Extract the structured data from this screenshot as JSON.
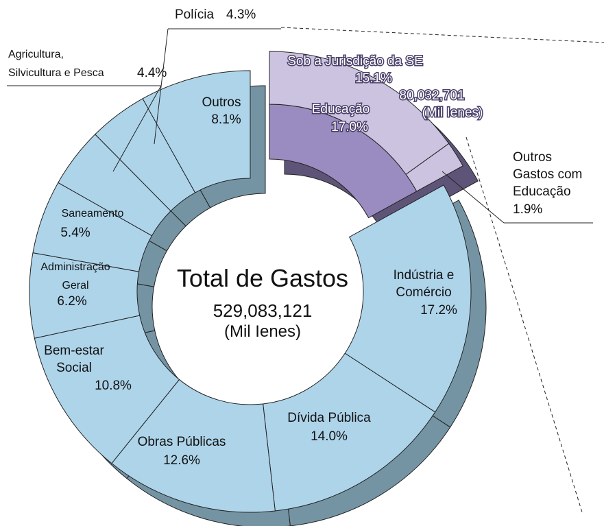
{
  "chart_data": {
    "type": "donut",
    "center_title": "Total de Gastos",
    "total": 529083121,
    "total_label": "529,083,121",
    "unit": "(Mil Ienes)",
    "categories": [
      "Educação",
      "Indústria e\nComércio",
      "Dívida Pública",
      "Obras Públicas",
      "Bem-estar\nSocial",
      "Administração\nGeral",
      "Saneamento",
      "Agricultura,\nSilvicultura e Pesca",
      "Polícia",
      "Outros"
    ],
    "values": [
      17.0,
      17.2,
      14.0,
      12.6,
      10.8,
      6.2,
      5.4,
      4.4,
      4.3,
      8.1
    ],
    "value_labels": [
      "17.0%",
      "17.2%",
      "14.0%",
      "12.6%",
      "10.8%",
      "6.2%",
      "5.4%",
      "4.4%",
      "4.3%",
      "8.1%"
    ],
    "color": "#aed4ea",
    "highlight_color": "#9a8cc0",
    "education_breakdown": [
      {
        "name": "Sob a Jurisdição da SE",
        "value": 15.1,
        "value_label": "15.1%",
        "amount": 80032701,
        "amount_label": "80,032,701",
        "color": "#cbc3e0"
      },
      {
        "name": "Outros\nGastos com\nEducação",
        "value": 1.9,
        "value_label": "1.9%",
        "color": "#cbc3e0"
      }
    ]
  }
}
